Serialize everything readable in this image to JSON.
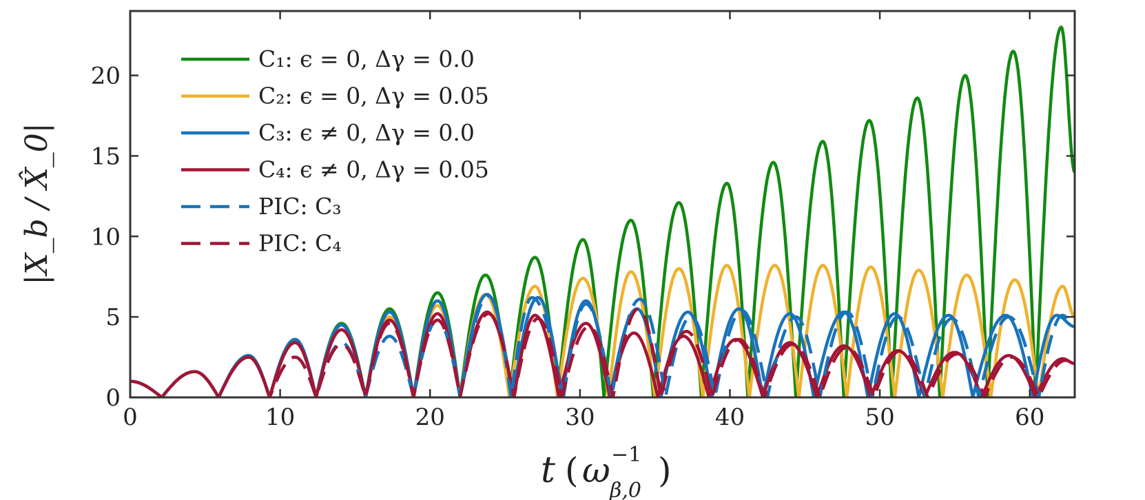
{
  "chart_data": {
    "type": "line",
    "xlabel": {
      "main": "t",
      "paren_open": "(",
      "base": "ω",
      "sup": "−1",
      "sub": "β,0",
      "paren_close": ")"
    },
    "ylabel": "|X_b / X̂_0|",
    "xlim": [
      0,
      63
    ],
    "ylim": [
      0,
      24
    ],
    "x_ticks": [
      0,
      10,
      20,
      30,
      40,
      50,
      60
    ],
    "x_tick_labels": [
      "0",
      "10",
      "20",
      "30",
      "40",
      "50",
      "60"
    ],
    "y_ticks": [
      0,
      5,
      10,
      15,
      20
    ],
    "y_tick_labels": [
      "0",
      "5",
      "10",
      "15",
      "20"
    ],
    "grid": false,
    "legend_position": "top-left",
    "colors": {
      "C1": "#128a12",
      "C2": "#efb22e",
      "C3": "#1873bb",
      "C4": "#a31535"
    },
    "legend": [
      {
        "key": "C1",
        "label": "C₁: ϵ = 0, Δγ = 0.0",
        "color": "#128a12",
        "style": "solid"
      },
      {
        "key": "C2",
        "label": "C₂: ϵ = 0, Δγ = 0.05",
        "color": "#efb22e",
        "style": "solid"
      },
      {
        "key": "C3",
        "label": "C₃: ϵ ≠ 0, Δγ = 0.0",
        "color": "#1873bb",
        "style": "solid"
      },
      {
        "key": "C4",
        "label": "C₄: ϵ ≠ 0, Δγ = 0.05",
        "color": "#a31535",
        "style": "solid"
      },
      {
        "key": "PIC_C3",
        "label": "PIC: C₃",
        "color": "#1873bb",
        "style": "dashed"
      },
      {
        "key": "PIC_C4",
        "label": "PIC: C₄",
        "color": "#a31535",
        "style": "dashed"
      }
    ],
    "series": [
      {
        "key": "C1",
        "color": "#128a12",
        "style": "solid",
        "width": 4.5,
        "points": [
          [
            0,
            1.0
          ],
          [
            2.1,
            0.0
          ],
          [
            4.3,
            1.6
          ],
          [
            5.9,
            0.0
          ],
          [
            7.9,
            2.6
          ],
          [
            9.3,
            0.0
          ],
          [
            11.0,
            3.6
          ],
          [
            12.4,
            0.0
          ],
          [
            14.1,
            4.6
          ],
          [
            15.7,
            0.0
          ],
          [
            17.3,
            5.5
          ],
          [
            18.9,
            0.0
          ],
          [
            20.5,
            6.5
          ],
          [
            22.0,
            0.0
          ],
          [
            23.7,
            7.6
          ],
          [
            25.3,
            0.0
          ],
          [
            27.0,
            8.7
          ],
          [
            28.5,
            0.0
          ],
          [
            30.2,
            9.8
          ],
          [
            31.6,
            0.0
          ],
          [
            33.4,
            11.0
          ],
          [
            34.9,
            0.0
          ],
          [
            36.6,
            12.1
          ],
          [
            38.1,
            0.0
          ],
          [
            39.8,
            13.3
          ],
          [
            41.2,
            0.0
          ],
          [
            42.9,
            14.6
          ],
          [
            44.4,
            0.0
          ],
          [
            46.2,
            15.9
          ],
          [
            47.6,
            0.0
          ],
          [
            49.3,
            17.2
          ],
          [
            50.8,
            0.0
          ],
          [
            52.5,
            18.6
          ],
          [
            54.0,
            0.0
          ],
          [
            55.7,
            20.0
          ],
          [
            57.2,
            0.0
          ],
          [
            58.9,
            21.5
          ],
          [
            60.4,
            0.0
          ],
          [
            62.1,
            23.0
          ],
          [
            63.0,
            14.0
          ]
        ]
      },
      {
        "key": "C2",
        "color": "#efb22e",
        "style": "solid",
        "width": 4.5,
        "points": [
          [
            0,
            1.0
          ],
          [
            2.1,
            0.0
          ],
          [
            4.3,
            1.6
          ],
          [
            5.9,
            0.0
          ],
          [
            7.9,
            2.5
          ],
          [
            9.3,
            0.0
          ],
          [
            11.0,
            3.4
          ],
          [
            12.4,
            0.0
          ],
          [
            14.1,
            4.2
          ],
          [
            15.7,
            0.0
          ],
          [
            17.3,
            5.0
          ],
          [
            18.9,
            0.0
          ],
          [
            20.5,
            5.7
          ],
          [
            22.0,
            0.0
          ],
          [
            23.7,
            6.4
          ],
          [
            25.3,
            0.0
          ],
          [
            27.0,
            6.9
          ],
          [
            28.5,
            0.0
          ],
          [
            30.2,
            7.4
          ],
          [
            31.9,
            0.0
          ],
          [
            33.4,
            7.8
          ],
          [
            35.0,
            0.0
          ],
          [
            36.6,
            8.0
          ],
          [
            38.2,
            0.0
          ],
          [
            39.8,
            8.2
          ],
          [
            41.3,
            0.0
          ],
          [
            43.0,
            8.2
          ],
          [
            44.6,
            0.0
          ],
          [
            46.2,
            8.2
          ],
          [
            47.8,
            0.0
          ],
          [
            49.4,
            8.1
          ],
          [
            51.0,
            0.0
          ],
          [
            52.6,
            7.9
          ],
          [
            54.2,
            0.0
          ],
          [
            55.8,
            7.6
          ],
          [
            57.4,
            0.0
          ],
          [
            59.0,
            7.3
          ],
          [
            60.6,
            0.0
          ],
          [
            62.2,
            6.9
          ],
          [
            63.0,
            5.0
          ]
        ]
      },
      {
        "key": "C3",
        "color": "#1873bb",
        "style": "solid",
        "width": 4.5,
        "points": [
          [
            0,
            1.0
          ],
          [
            2.1,
            0.0
          ],
          [
            4.3,
            1.6
          ],
          [
            5.9,
            0.0
          ],
          [
            7.9,
            2.6
          ],
          [
            9.3,
            0.0
          ],
          [
            11.0,
            3.6
          ],
          [
            12.4,
            0.0
          ],
          [
            14.1,
            4.5
          ],
          [
            15.7,
            0.0
          ],
          [
            17.3,
            5.3
          ],
          [
            18.9,
            0.0
          ],
          [
            20.5,
            6.0
          ],
          [
            22.0,
            0.0
          ],
          [
            23.8,
            6.4
          ],
          [
            25.5,
            0.0
          ],
          [
            27.2,
            6.2
          ],
          [
            28.8,
            0.0
          ],
          [
            30.4,
            6.0
          ],
          [
            32.0,
            0.0
          ],
          [
            33.8,
            5.5
          ],
          [
            35.4,
            0.0
          ],
          [
            37.2,
            5.3
          ],
          [
            38.8,
            0.0
          ],
          [
            40.6,
            5.5
          ],
          [
            42.2,
            0.0
          ],
          [
            44.0,
            5.2
          ],
          [
            45.6,
            0.0
          ],
          [
            47.6,
            5.3
          ],
          [
            49.2,
            0.0
          ],
          [
            51.0,
            5.2
          ],
          [
            52.6,
            0.0
          ],
          [
            54.6,
            5.1
          ],
          [
            56.2,
            0.0
          ],
          [
            58.4,
            5.1
          ],
          [
            60.2,
            0.0
          ],
          [
            61.8,
            5.1
          ],
          [
            63.0,
            4.4
          ]
        ]
      },
      {
        "key": "C4",
        "color": "#a31535",
        "style": "solid",
        "width": 4.5,
        "points": [
          [
            0,
            1.0
          ],
          [
            2.1,
            0.0
          ],
          [
            4.3,
            1.6
          ],
          [
            5.9,
            0.0
          ],
          [
            7.9,
            2.5
          ],
          [
            9.3,
            0.0
          ],
          [
            11.0,
            3.4
          ],
          [
            12.4,
            0.0
          ],
          [
            14.1,
            4.2
          ],
          [
            15.7,
            0.0
          ],
          [
            17.3,
            4.8
          ],
          [
            18.9,
            0.0
          ],
          [
            20.5,
            5.2
          ],
          [
            22.0,
            0.0
          ],
          [
            23.8,
            5.3
          ],
          [
            25.6,
            0.0
          ],
          [
            27.0,
            5.1
          ],
          [
            28.6,
            0.0
          ],
          [
            30.4,
            4.6
          ],
          [
            32.0,
            0.0
          ],
          [
            33.6,
            4.0
          ],
          [
            35.2,
            0.0
          ],
          [
            36.9,
            3.8
          ],
          [
            38.6,
            0.0
          ],
          [
            40.4,
            3.6
          ],
          [
            42.2,
            0.0
          ],
          [
            44.0,
            3.4
          ],
          [
            45.8,
            0.0
          ],
          [
            47.6,
            3.2
          ],
          [
            49.4,
            0.0
          ],
          [
            51.2,
            2.9
          ],
          [
            53.0,
            0.0
          ],
          [
            55.0,
            2.8
          ],
          [
            56.8,
            0.0
          ],
          [
            58.6,
            2.6
          ],
          [
            60.4,
            0.0
          ],
          [
            62.2,
            2.4
          ],
          [
            63.0,
            2.1
          ]
        ]
      },
      {
        "key": "PIC_C3",
        "color": "#1873bb",
        "style": "dashed",
        "width": 4.5,
        "points": [
          [
            0,
            1.0
          ],
          [
            2.1,
            0.0
          ],
          [
            4.3,
            1.6
          ],
          [
            5.9,
            0.0
          ],
          [
            7.9,
            2.5
          ],
          [
            9.3,
            0.0
          ],
          [
            11.0,
            2.5
          ],
          [
            12.4,
            0.0
          ],
          [
            14.1,
            3.4
          ],
          [
            15.7,
            0.0
          ],
          [
            17.3,
            3.8
          ],
          [
            18.9,
            0.0
          ],
          [
            20.5,
            4.8
          ],
          [
            22.0,
            0.0
          ],
          [
            23.9,
            6.3
          ],
          [
            25.4,
            0.0
          ],
          [
            26.8,
            6.2
          ],
          [
            28.9,
            0.0
          ],
          [
            30.4,
            5.8
          ],
          [
            32.1,
            0.0
          ],
          [
            34.0,
            6.1
          ],
          [
            35.7,
            0.0
          ],
          [
            37.4,
            5.0
          ],
          [
            39.0,
            0.0
          ],
          [
            40.8,
            5.4
          ],
          [
            42.5,
            0.0
          ],
          [
            44.4,
            5.0
          ],
          [
            46.0,
            0.0
          ],
          [
            47.8,
            5.3
          ],
          [
            49.5,
            0.0
          ],
          [
            51.2,
            5.0
          ],
          [
            53.0,
            0.0
          ],
          [
            54.8,
            4.9
          ],
          [
            56.6,
            0.0
          ],
          [
            58.6,
            5.0
          ],
          [
            60.6,
            0.0
          ],
          [
            62.2,
            5.1
          ],
          [
            63.0,
            4.4
          ]
        ]
      },
      {
        "key": "PIC_C4",
        "color": "#a31535",
        "style": "dashed",
        "width": 4.5,
        "points": [
          [
            0,
            1.0
          ],
          [
            2.1,
            0.0
          ],
          [
            4.3,
            1.6
          ],
          [
            5.9,
            0.0
          ],
          [
            7.9,
            2.5
          ],
          [
            9.3,
            0.0
          ],
          [
            11.0,
            2.5
          ],
          [
            12.4,
            0.0
          ],
          [
            14.1,
            3.3
          ],
          [
            15.7,
            0.0
          ],
          [
            17.3,
            4.6
          ],
          [
            18.9,
            0.0
          ],
          [
            20.5,
            4.8
          ],
          [
            22.0,
            0.0
          ],
          [
            23.9,
            5.2
          ],
          [
            25.6,
            0.0
          ],
          [
            27.2,
            4.9
          ],
          [
            28.8,
            0.0
          ],
          [
            30.6,
            4.4
          ],
          [
            32.2,
            0.0
          ],
          [
            33.9,
            5.5
          ],
          [
            35.4,
            0.0
          ],
          [
            37.1,
            4.1
          ],
          [
            38.8,
            0.0
          ],
          [
            40.6,
            3.6
          ],
          [
            42.3,
            0.0
          ],
          [
            44.2,
            3.3
          ],
          [
            46.0,
            0.0
          ],
          [
            47.8,
            3.1
          ],
          [
            49.6,
            0.0
          ],
          [
            51.4,
            2.9
          ],
          [
            53.2,
            0.0
          ],
          [
            55.2,
            2.7
          ],
          [
            57.0,
            0.0
          ],
          [
            58.8,
            2.5
          ],
          [
            60.6,
            0.0
          ],
          [
            62.4,
            2.3
          ],
          [
            63.0,
            2.1
          ]
        ]
      }
    ]
  }
}
